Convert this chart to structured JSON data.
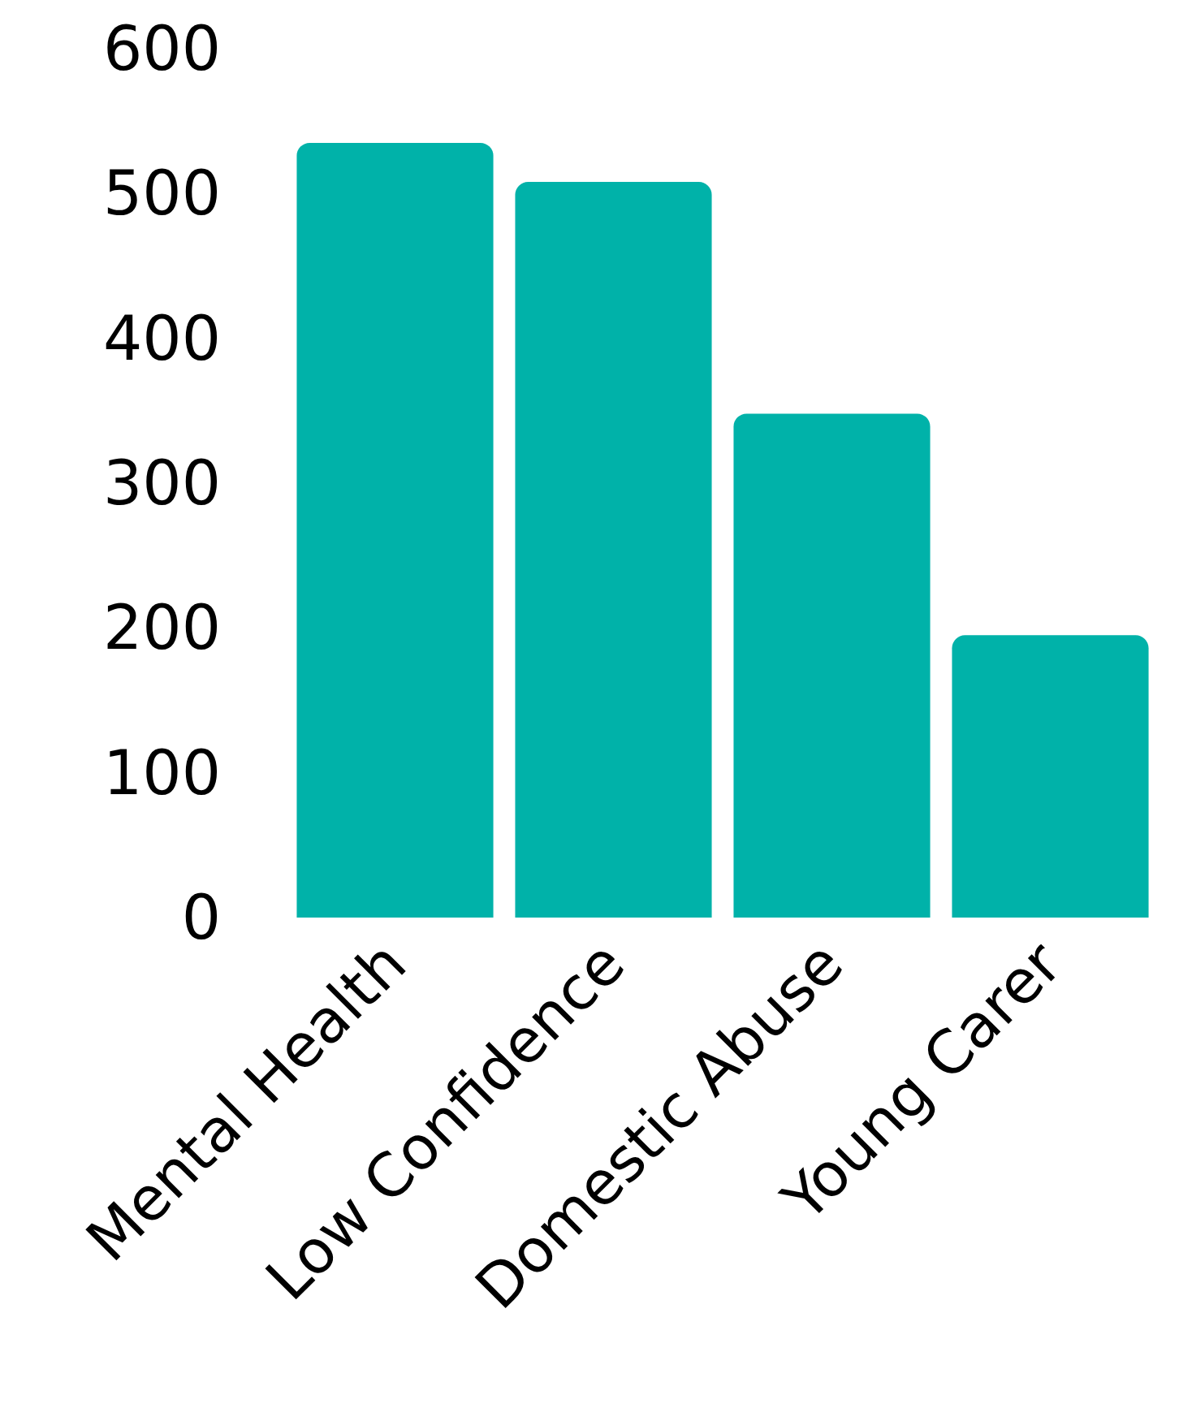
{
  "chart_data": {
    "type": "bar",
    "categories": [
      "Mental Health",
      "Low Confidence",
      "Domestic Abuse",
      "Young Carer"
    ],
    "values": [
      535,
      508,
      348,
      195
    ],
    "color": "#00b2a9",
    "ylim": [
      0,
      600
    ],
    "yticks": [
      0,
      100,
      200,
      300,
      400,
      500,
      600
    ],
    "grid": false
  }
}
